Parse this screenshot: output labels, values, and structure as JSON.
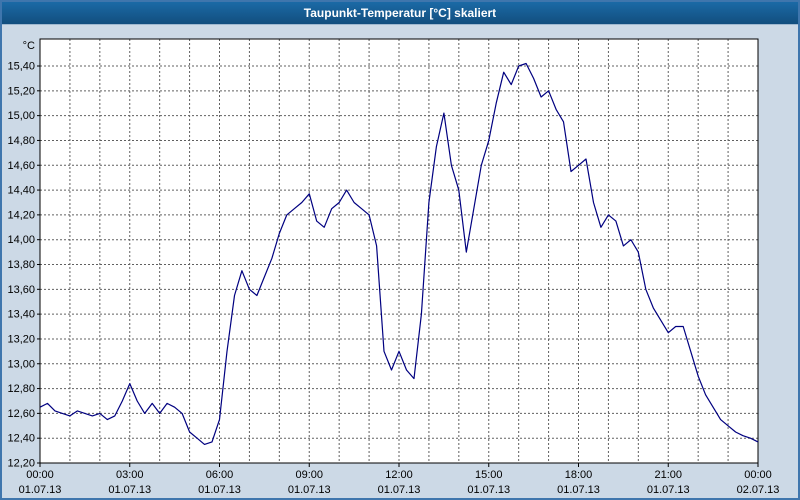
{
  "colors": {
    "title_bar_bg": "#14578C",
    "title_text": "#FFFFFF",
    "frame_bg": "#CCD9E6",
    "frame_border": "#3F76AD",
    "plot_bg": "#FFFFFF",
    "grid": "#606060",
    "axis": "#000000",
    "line": "#000080"
  },
  "chart_data": {
    "type": "line",
    "title": "Taupunkt-Temperatur [°C] skaliert",
    "ylabel": "°C",
    "xlabel": "",
    "xlim_hours": [
      0,
      24
    ],
    "ylim": [
      12.2,
      15.4
    ],
    "grid": "dashed; vertical every 1 hour, horizontal every 0.2 °C",
    "legend": "none",
    "y_tick_labels": [
      "15,40",
      "15,20",
      "15,00",
      "14,80",
      "14,60",
      "14,40",
      "14,20",
      "14,00",
      "13,80",
      "13,60",
      "13,40",
      "13,20",
      "13,00",
      "12,80",
      "12,60",
      "12,40",
      "12,20"
    ],
    "x_tick_hours": [
      0,
      3,
      6,
      9,
      12,
      15,
      18,
      21,
      24
    ],
    "x_tick_labels": [
      "00:00",
      "03:00",
      "06:00",
      "09:00",
      "12:00",
      "15:00",
      "18:00",
      "21:00",
      "00:00"
    ],
    "x_tick_dates": [
      "01.07.13",
      "01.07.13",
      "01.07.13",
      "01.07.13",
      "01.07.13",
      "01.07.13",
      "01.07.13",
      "01.07.13",
      "02.07.13"
    ],
    "x_start_hour": 0,
    "x_interval_hours": 0.25,
    "x_hours": [
      0,
      0.25,
      0.5,
      0.75,
      1,
      1.25,
      1.5,
      1.75,
      2,
      2.25,
      2.5,
      2.75,
      3,
      3.25,
      3.5,
      3.75,
      4,
      4.25,
      4.5,
      4.75,
      5,
      5.25,
      5.5,
      5.75,
      6,
      6.25,
      6.5,
      6.75,
      7,
      7.25,
      7.5,
      7.75,
      8,
      8.25,
      8.5,
      8.75,
      9,
      9.25,
      9.5,
      9.75,
      10,
      10.25,
      10.5,
      10.75,
      11,
      11.25,
      11.5,
      11.75,
      12,
      12.25,
      12.5,
      12.75,
      13,
      13.25,
      13.5,
      13.75,
      14,
      14.25,
      14.5,
      14.75,
      15,
      15.25,
      15.5,
      15.75,
      16,
      16.25,
      16.5,
      16.75,
      17,
      17.25,
      17.5,
      17.75,
      18,
      18.25,
      18.5,
      18.75,
      19,
      19.25,
      19.5,
      19.75,
      20,
      20.25,
      20.5,
      20.75,
      21,
      21.25,
      21.5,
      21.75,
      22,
      22.25,
      22.5,
      22.75,
      23,
      23.25,
      23.5,
      23.75,
      24
    ],
    "y_values": [
      12.65,
      12.68,
      12.62,
      12.6,
      12.58,
      12.62,
      12.6,
      12.58,
      12.6,
      12.55,
      12.58,
      12.7,
      12.84,
      12.7,
      12.6,
      12.68,
      12.6,
      12.68,
      12.65,
      12.6,
      12.45,
      12.4,
      12.35,
      12.37,
      12.55,
      13.1,
      13.55,
      13.75,
      13.6,
      13.55,
      13.7,
      13.85,
      14.05,
      14.2,
      14.25,
      14.3,
      14.37,
      14.15,
      14.1,
      14.25,
      14.3,
      14.4,
      14.3,
      14.25,
      14.2,
      13.95,
      13.1,
      12.95,
      13.1,
      12.95,
      12.88,
      13.4,
      14.3,
      14.75,
      15.02,
      14.6,
      14.4,
      13.9,
      14.25,
      14.6,
      14.8,
      15.1,
      15.35,
      15.25,
      15.4,
      15.42,
      15.3,
      15.15,
      15.2,
      15.05,
      14.95,
      14.55,
      14.6,
      14.65,
      14.3,
      14.1,
      14.2,
      14.15,
      13.95,
      14.0,
      13.9,
      13.6,
      13.45,
      13.35,
      13.25,
      13.3,
      13.3,
      13.1,
      12.9,
      12.75,
      12.65,
      12.55,
      12.5,
      12.45,
      12.42,
      12.4,
      12.37
    ]
  }
}
